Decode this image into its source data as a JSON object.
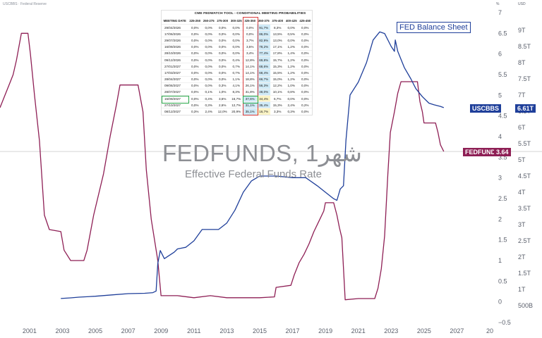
{
  "header": {
    "source_text": "USCBBS · Federal Reserve",
    "right_col1": "%",
    "right_col2": "USD"
  },
  "watermark": {
    "title": "FEDFUNDS, 1شهر",
    "subtitle": "Effective Federal Funds Rate"
  },
  "fed_balance_label": "FED Balance Sheet",
  "tags": {
    "usc_name": "USCBBS",
    "usc_value": "6.61T",
    "usc_color": "#1f3f9a",
    "ff_name": "FEDFUNDS",
    "ff_value": "3.64",
    "ff_color": "#8e1f55"
  },
  "fedwatch": {
    "title": "CME FEDWATCH TOOL - CONDITIONAL MEETING PROBABILITIES",
    "columns": [
      "MEETING DATE",
      "225-250",
      "250-275",
      "275-300",
      "300-325",
      "325-350",
      "350-375",
      "375-400",
      "400-425",
      "425-450"
    ],
    "rows": [
      [
        "29/04/2026",
        "0,0%",
        "0,0%",
        "0,0%",
        "0,0%",
        "0,0%",
        "91,7%",
        "8,3%",
        "0,0%",
        "0,0%"
      ],
      [
        "17/06/2026",
        "0,0%",
        "0,0%",
        "0,0%",
        "0,0%",
        "0,0%",
        "86,0%",
        "13,5%",
        "0,5%",
        "0,0%"
      ],
      [
        "29/07/2026",
        "0,0%",
        "0,0%",
        "0,0%",
        "0,0%",
        "3,7%",
        "82,9%",
        "13,0%",
        "0,0%",
        "0,0%"
      ],
      [
        "16/09/2026",
        "0,0%",
        "0,0%",
        "0,0%",
        "0,0%",
        "3,5%",
        "78,2%",
        "17,1%",
        "1,2%",
        "0,0%"
      ],
      [
        "28/10/2026",
        "0,0%",
        "0,0%",
        "0,0%",
        "0,0%",
        "3,4%",
        "77,4%",
        "17,8%",
        "1,4%",
        "0,0%"
      ],
      [
        "09/12/2026",
        "0,0%",
        "0,0%",
        "0,0%",
        "0,4%",
        "12,8%",
        "69,8%",
        "15,7%",
        "1,2%",
        "0,0%"
      ],
      [
        "27/01/2027",
        "0,0%",
        "0,0%",
        "0,0%",
        "0,7%",
        "14,1%",
        "68,6%",
        "15,3%",
        "1,2%",
        "0,0%"
      ],
      [
        "17/03/2027",
        "0,0%",
        "0,0%",
        "0,0%",
        "0,7%",
        "14,1%",
        "68,4%",
        "15,5%",
        "1,2%",
        "0,0%"
      ],
      [
        "28/04/2027",
        "0,0%",
        "0,0%",
        "0,0%",
        "1,1%",
        "18,8%",
        "66,7%",
        "15,0%",
        "1,2%",
        "0,0%"
      ],
      [
        "09/06/2027",
        "0,0%",
        "0,0%",
        "0,3%",
        "4,1%",
        "26,1%",
        "56,3%",
        "12,2%",
        "1,0%",
        "0,0%"
      ],
      [
        "28/07/2027",
        "0,0%",
        "0,1%",
        "1,0%",
        "8,3%",
        "31,8%",
        "48,0%",
        "10,1%",
        "0,8%",
        "0,0%"
      ],
      [
        "15/09/2027",
        "0,0%",
        "0,4%",
        "3,6%",
        "16,7%",
        "37,6%",
        "34,4%",
        "6,7%",
        "0,0%",
        "0,0%"
      ],
      [
        "27/10/2027",
        "0,0%",
        "0,3%",
        "2,6%",
        "12,7%",
        "31,1%",
        "35,4%",
        "15,3%",
        "2,4%",
        "0,2%"
      ],
      [
        "08/12/2027",
        "0,3%",
        "2,4%",
        "12,0%",
        "20,9%",
        "35,1%",
        "16,7%",
        "3,3%",
        "0,3%",
        "0,0%"
      ]
    ]
  },
  "chart_data": {
    "type": "line",
    "x_ticks": [
      "2001",
      "2003",
      "2005",
      "2007",
      "2009",
      "2011",
      "2013",
      "2015",
      "2017",
      "2019",
      "2021",
      "2023",
      "2025",
      "2027",
      "20"
    ],
    "y_left_ticks": [
      "7",
      "6.5",
      "6",
      "5.5",
      "5",
      "4.5",
      "4",
      "3.5",
      "3",
      "2.5",
      "2",
      "1.5",
      "1",
      "0.5",
      "0",
      "−0.5"
    ],
    "y_left_ticks_values": [
      7,
      6.5,
      6,
      5.5,
      5,
      4.5,
      4,
      3.5,
      3,
      2.5,
      2,
      1.5,
      1,
      0.5,
      0,
      -0.5
    ],
    "y_right_ticks": [
      "9T",
      "8.5T",
      "8T",
      "7.5T",
      "7T",
      "6.5T",
      "6T",
      "5.5T",
      "5T",
      "4.5T",
      "4T",
      "3.5T",
      "3T",
      "2.5T",
      "2T",
      "1.5T",
      "1T",
      "500B"
    ],
    "y_right_ticks_values": [
      9,
      8.5,
      8,
      7.5,
      7,
      6.5,
      6,
      5.5,
      5,
      4.5,
      4,
      3.5,
      3,
      2.5,
      2,
      1.5,
      1,
      0.5
    ],
    "y_left_range": [
      -0.5,
      7
    ],
    "y_right_range_trillions": [
      0,
      9.5
    ],
    "x_range": [
      1999.2,
      2029.0
    ],
    "series": [
      {
        "name": "FEDFUNDS",
        "axis": "left",
        "color": "#8e1f55",
        "points": [
          [
            1999.2,
            4.7
          ],
          [
            1999.5,
            5.0
          ],
          [
            1999.8,
            5.3
          ],
          [
            2000.0,
            5.5
          ],
          [
            2000.2,
            5.85
          ],
          [
            2000.5,
            6.5
          ],
          [
            2000.9,
            6.5
          ],
          [
            2001.05,
            6.0
          ],
          [
            2001.3,
            5.0
          ],
          [
            2001.6,
            3.9
          ],
          [
            2001.9,
            2.1
          ],
          [
            2002.2,
            1.75
          ],
          [
            2002.9,
            1.7
          ],
          [
            2003.1,
            1.25
          ],
          [
            2003.5,
            1.0
          ],
          [
            2004.3,
            1.0
          ],
          [
            2004.5,
            1.25
          ],
          [
            2004.9,
            2.1
          ],
          [
            2005.5,
            3.1
          ],
          [
            2005.9,
            4.0
          ],
          [
            2006.3,
            4.8
          ],
          [
            2006.5,
            5.25
          ],
          [
            2007.6,
            5.25
          ],
          [
            2007.9,
            4.6
          ],
          [
            2008.1,
            3.2
          ],
          [
            2008.4,
            2.0
          ],
          [
            2008.8,
            1.0
          ],
          [
            2009.0,
            0.15
          ],
          [
            2009.5,
            0.15
          ],
          [
            2010.0,
            0.15
          ],
          [
            2011.0,
            0.1
          ],
          [
            2012.0,
            0.15
          ],
          [
            2013.0,
            0.1
          ],
          [
            2014.0,
            0.1
          ],
          [
            2015.0,
            0.1
          ],
          [
            2015.9,
            0.12
          ],
          [
            2016.0,
            0.35
          ],
          [
            2016.9,
            0.4
          ],
          [
            2017.1,
            0.65
          ],
          [
            2017.4,
            0.95
          ],
          [
            2017.7,
            1.15
          ],
          [
            2018.0,
            1.4
          ],
          [
            2018.3,
            1.7
          ],
          [
            2018.6,
            1.95
          ],
          [
            2018.9,
            2.2
          ],
          [
            2019.0,
            2.4
          ],
          [
            2019.5,
            2.4
          ],
          [
            2019.7,
            2.1
          ],
          [
            2019.85,
            1.8
          ],
          [
            2020.0,
            1.55
          ],
          [
            2020.2,
            0.05
          ],
          [
            2021.0,
            0.08
          ],
          [
            2022.0,
            0.08
          ],
          [
            2022.2,
            0.33
          ],
          [
            2022.4,
            0.8
          ],
          [
            2022.6,
            1.6
          ],
          [
            2022.8,
            3.1
          ],
          [
            2022.95,
            4.1
          ],
          [
            2023.2,
            4.6
          ],
          [
            2023.4,
            5.05
          ],
          [
            2023.6,
            5.33
          ],
          [
            2024.6,
            5.33
          ],
          [
            2024.75,
            4.85
          ],
          [
            2024.9,
            4.6
          ],
          [
            2025.0,
            4.33
          ],
          [
            2025.7,
            4.33
          ],
          [
            2025.85,
            4.1
          ],
          [
            2026.0,
            3.8
          ],
          [
            2026.2,
            3.64
          ]
        ]
      },
      {
        "name": "USCBBS",
        "axis": "right",
        "color": "#1f3f9a",
        "unit": "trillions USD",
        "points": [
          [
            2002.9,
            0.72
          ],
          [
            2003.5,
            0.74
          ],
          [
            2004.0,
            0.76
          ],
          [
            2005.0,
            0.79
          ],
          [
            2006.0,
            0.83
          ],
          [
            2007.0,
            0.87
          ],
          [
            2008.0,
            0.88
          ],
          [
            2008.5,
            0.9
          ],
          [
            2008.7,
            0.95
          ],
          [
            2008.8,
            1.8
          ],
          [
            2008.95,
            2.2
          ],
          [
            2009.2,
            1.95
          ],
          [
            2009.5,
            2.05
          ],
          [
            2009.8,
            2.15
          ],
          [
            2010.0,
            2.25
          ],
          [
            2010.5,
            2.3
          ],
          [
            2011.0,
            2.5
          ],
          [
            2011.5,
            2.85
          ],
          [
            2012.0,
            2.85
          ],
          [
            2012.5,
            2.85
          ],
          [
            2013.0,
            3.05
          ],
          [
            2013.5,
            3.45
          ],
          [
            2014.0,
            4.0
          ],
          [
            2014.5,
            4.35
          ],
          [
            2015.0,
            4.5
          ],
          [
            2016.0,
            4.5
          ],
          [
            2017.0,
            4.45
          ],
          [
            2017.8,
            4.45
          ],
          [
            2018.5,
            4.2
          ],
          [
            2019.0,
            4.0
          ],
          [
            2019.5,
            3.8
          ],
          [
            2019.7,
            3.75
          ],
          [
            2019.9,
            4.1
          ],
          [
            2020.1,
            4.2
          ],
          [
            2020.25,
            5.6
          ],
          [
            2020.5,
            7.0
          ],
          [
            2021.0,
            7.4
          ],
          [
            2021.5,
            8.0
          ],
          [
            2021.9,
            8.7
          ],
          [
            2022.3,
            8.95
          ],
          [
            2022.6,
            8.9
          ],
          [
            2023.0,
            8.5
          ],
          [
            2023.2,
            8.35
          ],
          [
            2023.25,
            8.7
          ],
          [
            2023.4,
            8.35
          ],
          [
            2023.8,
            7.85
          ],
          [
            2024.2,
            7.5
          ],
          [
            2024.5,
            7.2
          ],
          [
            2024.9,
            6.95
          ],
          [
            2025.3,
            6.75
          ],
          [
            2025.6,
            6.7
          ],
          [
            2026.0,
            6.65
          ],
          [
            2026.2,
            6.61
          ]
        ]
      }
    ]
  }
}
